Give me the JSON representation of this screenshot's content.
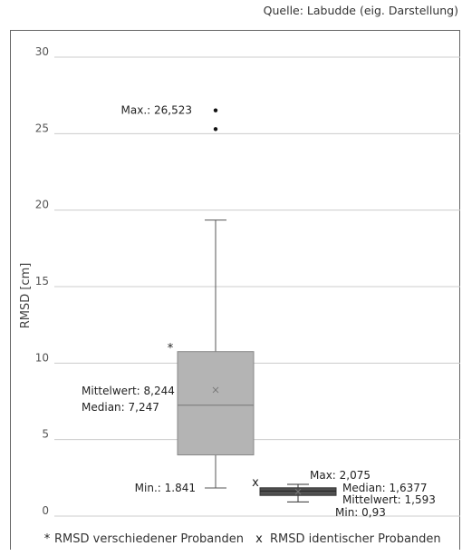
{
  "source": "Quelle: Labudde (eig. Darstellung)",
  "chart_data": {
    "type": "box",
    "title": "",
    "xlabel": "",
    "ylabel": "RMSD [cm]",
    "ylim": [
      0,
      30
    ],
    "yticks": [
      0,
      5,
      10,
      15,
      20,
      25,
      30
    ],
    "grid": true,
    "boxes": [
      {
        "marker": "*",
        "min": 1.841,
        "q1": 4.0,
        "median": 7.247,
        "mean": 8.244,
        "q3": 10.75,
        "whisker_high": 19.35,
        "outliers": [
          25.3,
          26.523
        ],
        "color": "#b4b4b4",
        "labels": {
          "max": "Max.: 26,523",
          "mean": "Mittelwert: 8,244",
          "median": "Median: 7,247",
          "min": "Min.: 1.841"
        }
      },
      {
        "marker": "x",
        "min": 0.93,
        "q1": 1.35,
        "median": 1.6377,
        "mean": 1.593,
        "q3": 1.85,
        "whisker_high": 2.075,
        "outliers": [],
        "color": "#505050",
        "labels": {
          "max": "Max: 2,075",
          "median": "Median: 1,6377",
          "mean": "Mittelwert: 1,593",
          "min": "Min: 0,93"
        }
      }
    ],
    "legend": [
      {
        "marker": "*",
        "label": "RMSD verschiedener Probanden"
      },
      {
        "marker": "x",
        "label": "RMSD identischer Probanden"
      }
    ],
    "legend_position": "bottom"
  }
}
